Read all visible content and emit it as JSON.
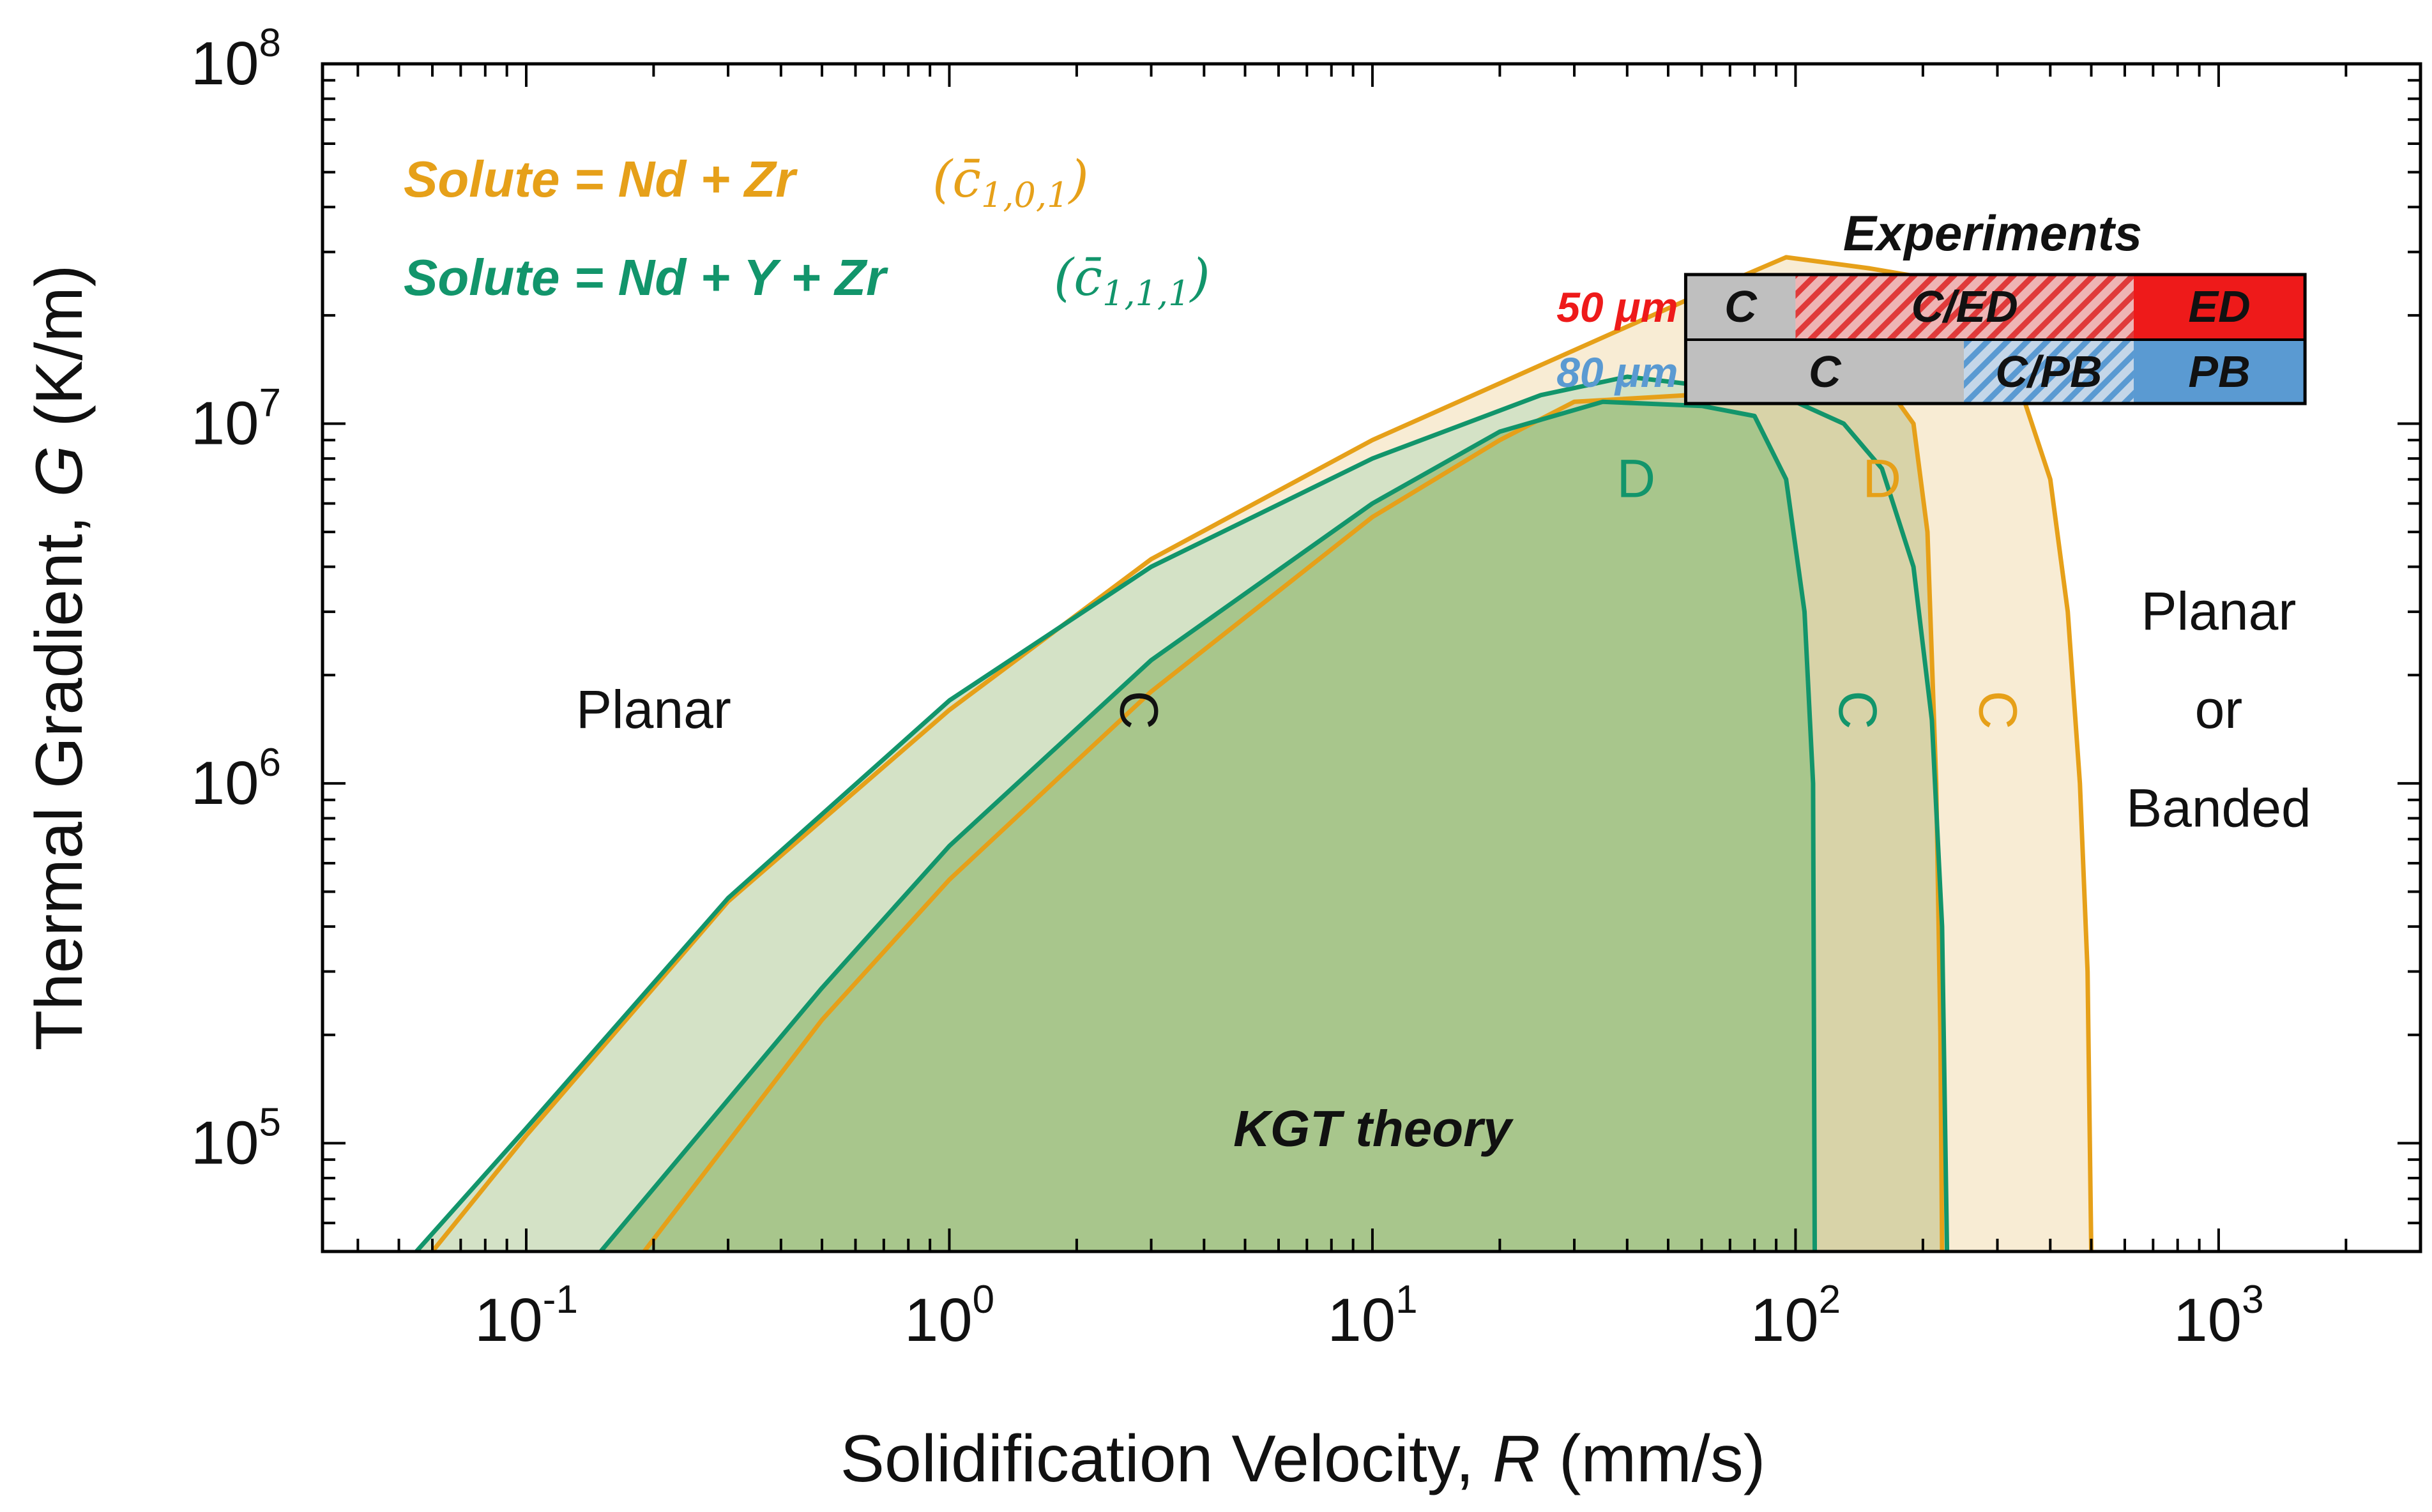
{
  "chart_data": {
    "type": "area",
    "title": "",
    "xlabel": {
      "base": "Solidification Velocity, ",
      "symbol": "R",
      "unit": " (mm/s)"
    },
    "ylabel": {
      "base": "Thermal Gradient, ",
      "symbol": "G",
      "unit": " (K/m)"
    },
    "x_scale": "log",
    "y_scale": "log",
    "xlim": [
      0.033,
      3000
    ],
    "ylim": [
      50000,
      100000000
    ],
    "grid": false,
    "x_ticks": [
      {
        "value": 0.1,
        "base": "10",
        "exp": "-1"
      },
      {
        "value": 1,
        "base": "10",
        "exp": "0"
      },
      {
        "value": 10,
        "base": "10",
        "exp": "1"
      },
      {
        "value": 100,
        "base": "10",
        "exp": "2"
      },
      {
        "value": 1000,
        "base": "10",
        "exp": "3"
      }
    ],
    "y_ticks": [
      {
        "value": 100000,
        "base": "10",
        "exp": "5"
      },
      {
        "value": 1000000,
        "base": "10",
        "exp": "6"
      },
      {
        "value": 10000000,
        "base": "10",
        "exp": "7"
      },
      {
        "value": 100000000,
        "base": "10",
        "exp": "8"
      }
    ],
    "colors": {
      "ndzr": "#e6a019",
      "ndyzr": "#12956b",
      "columnar_fill": "#d4e2c6",
      "dendritic_fill": "#a8c68c",
      "ndzr_c_fill": "#f8ecd4",
      "ndzr_d_fill": "#d8d3a8",
      "exp_gray": "#bfbfbf",
      "exp_red": "#ee1a1a",
      "exp_blue": "#5a9ad2",
      "label_red": "#ee1a1a",
      "label_blue": "#5a9ad2"
    },
    "series": [
      {
        "name": "Solute = Nd + Zr",
        "symbol_parts": {
          "base": "c̄",
          "sub": "1,0,1"
        },
        "color": "#e6a019",
        "columnar_boundary": [
          {
            "x": 0.06,
            "y": 50000
          },
          {
            "x": 0.1,
            "y": 105000
          },
          {
            "x": 0.3,
            "y": 470000
          },
          {
            "x": 1,
            "y": 1600000
          },
          {
            "x": 3,
            "y": 4200000
          },
          {
            "x": 10,
            "y": 9000000
          },
          {
            "x": 30,
            "y": 16000000
          },
          {
            "x": 60,
            "y": 23000000
          },
          {
            "x": 95,
            "y": 29000000
          },
          {
            "x": 150,
            "y": 27000000
          },
          {
            "x": 220,
            "y": 25000000
          },
          {
            "x": 280,
            "y": 19000000
          },
          {
            "x": 340,
            "y": 12500000
          },
          {
            "x": 400,
            "y": 7000000
          },
          {
            "x": 440,
            "y": 3000000
          },
          {
            "x": 470,
            "y": 1000000
          },
          {
            "x": 490,
            "y": 300000
          },
          {
            "x": 500,
            "y": 50000
          }
        ],
        "dendritic_boundary": [
          {
            "x": 0.19,
            "y": 50000
          },
          {
            "x": 0.5,
            "y": 220000
          },
          {
            "x": 1,
            "y": 540000
          },
          {
            "x": 3,
            "y": 1800000
          },
          {
            "x": 10,
            "y": 5500000
          },
          {
            "x": 20,
            "y": 9000000
          },
          {
            "x": 30,
            "y": 11500000
          },
          {
            "x": 100,
            "y": 12500000
          },
          {
            "x": 170,
            "y": 12000000
          },
          {
            "x": 190,
            "y": 10000000
          },
          {
            "x": 205,
            "y": 5000000
          },
          {
            "x": 215,
            "y": 1000000
          },
          {
            "x": 220,
            "y": 200000
          },
          {
            "x": 222,
            "y": 50000
          }
        ]
      },
      {
        "name": "Solute = Nd + Y + Zr",
        "symbol_parts": {
          "base": "c̄",
          "sub": "1,1,1"
        },
        "color": "#12956b",
        "columnar_boundary": [
          {
            "x": 0.055,
            "y": 50000
          },
          {
            "x": 0.1,
            "y": 110000
          },
          {
            "x": 0.3,
            "y": 480000
          },
          {
            "x": 1,
            "y": 1700000
          },
          {
            "x": 3,
            "y": 4000000
          },
          {
            "x": 10,
            "y": 8000000
          },
          {
            "x": 25,
            "y": 12000000
          },
          {
            "x": 40,
            "y": 13500000
          },
          {
            "x": 70,
            "y": 12500000
          },
          {
            "x": 100,
            "y": 11500000
          },
          {
            "x": 130,
            "y": 10000000
          },
          {
            "x": 160,
            "y": 7500000
          },
          {
            "x": 190,
            "y": 4000000
          },
          {
            "x": 210,
            "y": 1500000
          },
          {
            "x": 222,
            "y": 400000
          },
          {
            "x": 228,
            "y": 50000
          }
        ],
        "dendritic_boundary": [
          {
            "x": 0.15,
            "y": 50000
          },
          {
            "x": 0.5,
            "y": 270000
          },
          {
            "x": 1,
            "y": 670000
          },
          {
            "x": 3,
            "y": 2200000
          },
          {
            "x": 10,
            "y": 6000000
          },
          {
            "x": 20,
            "y": 9500000
          },
          {
            "x": 35,
            "y": 11500000
          },
          {
            "x": 60,
            "y": 11200000
          },
          {
            "x": 80,
            "y": 10500000
          },
          {
            "x": 95,
            "y": 7000000
          },
          {
            "x": 105,
            "y": 3000000
          },
          {
            "x": 110,
            "y": 1000000
          },
          {
            "x": 111,
            "y": 50000
          }
        ]
      }
    ],
    "region_labels": [
      {
        "text": "Planar",
        "x": 0.2,
        "y": 1600000
      },
      {
        "text": "Planar",
        "x": 1000,
        "y": 3000000
      },
      {
        "text": "or",
        "x": 1000,
        "y": 1600000
      },
      {
        "text": "Banded",
        "x": 1000,
        "y": 850000
      },
      {
        "text": "KGT theory",
        "x": 10,
        "y": 110000
      }
    ],
    "curve_labels": [
      {
        "text": "C",
        "series": "common",
        "x": 2.8,
        "y": 1600000,
        "rotate": 90
      },
      {
        "text": "D",
        "series": "Solute = Nd + Y + Zr",
        "x": 42,
        "y": 7000000,
        "rotate": 0
      },
      {
        "text": "C",
        "series": "Solute = Nd + Y + Zr",
        "x": 140,
        "y": 1600000,
        "rotate": 90
      },
      {
        "text": "D",
        "series": "Solute = Nd + Zr",
        "x": 160,
        "y": 7000000,
        "rotate": 0
      },
      {
        "text": "C",
        "series": "Solute = Nd + Zr",
        "x": 300,
        "y": 1600000,
        "rotate": 90
      }
    ],
    "experiments": {
      "title": "Experiments",
      "rows": [
        {
          "label": "50 μm",
          "label_color": "#ee1a1a",
          "segments": [
            {
              "text": "C",
              "x0": 55,
              "x1": 100,
              "fill": "gray"
            },
            {
              "text": "C/ED",
              "x0": 100,
              "x1": 630,
              "fill": "red-hatch"
            },
            {
              "text": "ED",
              "x0": 630,
              "x1": 1600,
              "fill": "red"
            }
          ]
        },
        {
          "label": "80 μm",
          "label_color": "#5a9ad2",
          "segments": [
            {
              "text": "C",
              "x0": 55,
              "x1": 250,
              "fill": "gray"
            },
            {
              "text": "C/PB",
              "x0": 250,
              "x1": 630,
              "fill": "blue-hatch"
            },
            {
              "text": "PB",
              "x0": 630,
              "x1": 1600,
              "fill": "blue"
            }
          ]
        }
      ]
    }
  }
}
